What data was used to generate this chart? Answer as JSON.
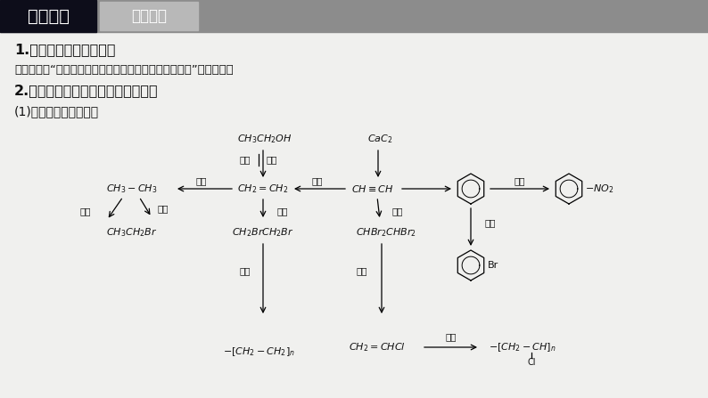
{
  "bg_color": "#f0f0ee",
  "header_bar_color": "#8c8c8c",
  "header_left_bg": "#0d0d1a",
  "header_left_text": "归纳整合",
  "header_right_text": "必备知识",
  "heading1": "1.熟知常见官能团的性质",
  "para1": "详细内容见“热点强化　　多官能团有机物的结构与性质”热点精讲。",
  "heading2": "2.掌握典型有机物的性质及转化关系",
  "sub1": "(1)重要烃的性质及转化"
}
